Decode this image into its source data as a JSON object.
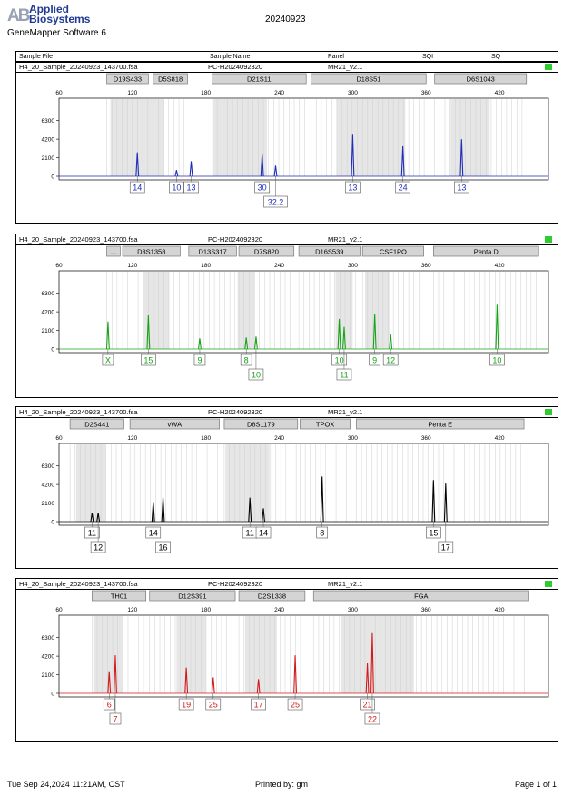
{
  "header": {
    "logo_mark": "AB",
    "logo_line1": "Applied",
    "logo_line2": "Biosystems",
    "software": "GeneMapper Software 6",
    "date": "20240923"
  },
  "columns": [
    "Sample File",
    "Sample Name",
    "Panel",
    "SQI",
    "SQ"
  ],
  "sample": {
    "file": "H4_20_Sample_20240923_143700.fsa",
    "name": "PC-H2024092320",
    "panel": "MR21_v2.1"
  },
  "footer": {
    "left": "Tue Sep 24,2024 11:21AM, CST",
    "center": "Printed by: gm",
    "right": "Page 1 of 1"
  },
  "chart_data": [
    {
      "type": "line",
      "dye": "blue",
      "color": "#1f2db8",
      "xlim": [
        60,
        460
      ],
      "ylim": [
        0,
        7600
      ],
      "x_ticks": [
        60,
        120,
        180,
        240,
        300,
        360,
        420
      ],
      "y_ticks": [
        0,
        2100,
        4200,
        6300
      ],
      "markers": [
        {
          "name": "D19S433",
          "start": 99,
          "end": 133
        },
        {
          "name": "D5S818",
          "start": 137,
          "end": 165
        },
        {
          "name": "D21S11",
          "start": 185,
          "end": 262
        },
        {
          "name": "D18S51",
          "start": 266,
          "end": 360
        },
        {
          "name": "D6S1043",
          "start": 367,
          "end": 442
        }
      ],
      "bins": [
        [
          102,
          146
        ],
        [
          186,
          230
        ],
        [
          287,
          343
        ],
        [
          380,
          412
        ]
      ],
      "peaks": [
        {
          "x": 124,
          "y": 2700
        },
        {
          "x": 156,
          "y": 700
        },
        {
          "x": 168,
          "y": 1700
        },
        {
          "x": 226,
          "y": 2500
        },
        {
          "x": 237,
          "y": 1200
        },
        {
          "x": 300,
          "y": 4700
        },
        {
          "x": 341,
          "y": 3400
        },
        {
          "x": 389,
          "y": 4200
        }
      ],
      "alleles": [
        {
          "x": 124,
          "label": "14",
          "row": 1
        },
        {
          "x": 156,
          "label": "10",
          "row": 1
        },
        {
          "x": 168,
          "label": "13",
          "row": 1
        },
        {
          "x": 226,
          "label": "30",
          "row": 1
        },
        {
          "x": 237,
          "label": "32.2",
          "row": 2
        },
        {
          "x": 300,
          "label": "13",
          "row": 1
        },
        {
          "x": 341,
          "label": "24",
          "row": 1
        },
        {
          "x": 389,
          "label": "13",
          "row": 1
        }
      ]
    },
    {
      "type": "line",
      "dye": "green",
      "color": "#17a317",
      "xlim": [
        60,
        460
      ],
      "ylim": [
        0,
        7600
      ],
      "x_ticks": [
        60,
        120,
        180,
        240,
        300,
        360,
        420
      ],
      "y_ticks": [
        0,
        2100,
        4200,
        6300
      ],
      "markers": [
        {
          "name": "...",
          "start": 99,
          "end": 110
        },
        {
          "name": "D3S1358",
          "start": 112,
          "end": 159
        },
        {
          "name": "D13S317",
          "start": 166,
          "end": 205
        },
        {
          "name": "D7S820",
          "start": 207,
          "end": 252
        },
        {
          "name": "D16S539",
          "start": 256,
          "end": 306
        },
        {
          "name": "CSF1PO",
          "start": 308,
          "end": 358
        },
        {
          "name": "Penta D",
          "start": 366,
          "end": 452
        }
      ],
      "bins": [
        [
          129,
          150
        ],
        [
          206,
          220
        ],
        [
          286,
          300
        ],
        [
          310,
          330
        ]
      ],
      "peaks": [
        {
          "x": 100,
          "y": 3100
        },
        {
          "x": 133,
          "y": 3800
        },
        {
          "x": 175,
          "y": 1200
        },
        {
          "x": 213,
          "y": 1300
        },
        {
          "x": 221,
          "y": 1400
        },
        {
          "x": 289,
          "y": 3400
        },
        {
          "x": 293,
          "y": 2500
        },
        {
          "x": 318,
          "y": 4000
        },
        {
          "x": 331,
          "y": 1700
        },
        {
          "x": 418,
          "y": 5000
        }
      ],
      "alleles": [
        {
          "x": 100,
          "label": "X",
          "row": 1
        },
        {
          "x": 133,
          "label": "15",
          "row": 1
        },
        {
          "x": 175,
          "label": "9",
          "row": 1
        },
        {
          "x": 213,
          "label": "8",
          "row": 1
        },
        {
          "x": 221,
          "label": "10",
          "row": 2
        },
        {
          "x": 289,
          "label": "10",
          "row": 1
        },
        {
          "x": 293,
          "label": "11",
          "row": 2
        },
        {
          "x": 318,
          "label": "9",
          "row": 1
        },
        {
          "x": 331,
          "label": "12",
          "row": 1
        },
        {
          "x": 418,
          "label": "10",
          "row": 1
        }
      ]
    },
    {
      "type": "line",
      "dye": "black",
      "color": "#000000",
      "xlim": [
        60,
        460
      ],
      "ylim": [
        0,
        7600
      ],
      "x_ticks": [
        60,
        120,
        180,
        240,
        300,
        360,
        420
      ],
      "y_ticks": [
        0,
        2100,
        4200,
        6300
      ],
      "markers": [
        {
          "name": "D2S441",
          "start": 69,
          "end": 113
        },
        {
          "name": "vWA",
          "start": 118,
          "end": 191
        },
        {
          "name": "D8S1179",
          "start": 195,
          "end": 255
        },
        {
          "name": "TPOX",
          "start": 257,
          "end": 298
        },
        {
          "name": "Penta E",
          "start": 303,
          "end": 440
        }
      ],
      "bins": [
        [
          74,
          98
        ],
        [
          196,
          232
        ]
      ],
      "peaks": [
        {
          "x": 87,
          "y": 1000
        },
        {
          "x": 92,
          "y": 1000
        },
        {
          "x": 137,
          "y": 2200
        },
        {
          "x": 145,
          "y": 2700
        },
        {
          "x": 216,
          "y": 2700
        },
        {
          "x": 227,
          "y": 1500
        },
        {
          "x": 275,
          "y": 5100
        },
        {
          "x": 366,
          "y": 4700
        },
        {
          "x": 376,
          "y": 4300
        }
      ],
      "alleles": [
        {
          "x": 87,
          "label": "11",
          "row": 1
        },
        {
          "x": 92,
          "label": "12",
          "row": 2
        },
        {
          "x": 137,
          "label": "14",
          "row": 1
        },
        {
          "x": 145,
          "label": "16",
          "row": 2
        },
        {
          "x": 216,
          "label": "11",
          "row": 1
        },
        {
          "x": 227,
          "label": "14",
          "row": 1
        },
        {
          "x": 275,
          "label": "8",
          "row": 1
        },
        {
          "x": 366,
          "label": "15",
          "row": 1
        },
        {
          "x": 376,
          "label": "17",
          "row": 2
        }
      ]
    },
    {
      "type": "line",
      "dye": "red",
      "color": "#d21a1a",
      "xlim": [
        60,
        460
      ],
      "ylim": [
        0,
        7600
      ],
      "x_ticks": [
        60,
        120,
        180,
        240,
        300,
        360,
        420
      ],
      "y_ticks": [
        0,
        2100,
        4200,
        6300
      ],
      "markers": [
        {
          "name": "TH01",
          "start": 87,
          "end": 131
        },
        {
          "name": "D12S391",
          "start": 134,
          "end": 204
        },
        {
          "name": "D2S1338",
          "start": 207,
          "end": 261
        },
        {
          "name": "FGA",
          "start": 268,
          "end": 444
        }
      ],
      "bins": [
        [
          88,
          112
        ],
        [
          156,
          180
        ],
        [
          212,
          238
        ],
        [
          290,
          350
        ]
      ],
      "peaks": [
        {
          "x": 101,
          "y": 2500
        },
        {
          "x": 106,
          "y": 4300
        },
        {
          "x": 164,
          "y": 2900
        },
        {
          "x": 186,
          "y": 1800
        },
        {
          "x": 223,
          "y": 1600
        },
        {
          "x": 253,
          "y": 4300
        },
        {
          "x": 312,
          "y": 3400
        },
        {
          "x": 316,
          "y": 6900
        }
      ],
      "alleles": [
        {
          "x": 101,
          "label": "6",
          "row": 1
        },
        {
          "x": 106,
          "label": "7",
          "row": 2
        },
        {
          "x": 164,
          "label": "19",
          "row": 1
        },
        {
          "x": 186,
          "label": "25",
          "row": 1
        },
        {
          "x": 223,
          "label": "17",
          "row": 1
        },
        {
          "x": 253,
          "label": "25",
          "row": 1
        },
        {
          "x": 312,
          "label": "21",
          "row": 1
        },
        {
          "x": 316,
          "label": "22",
          "row": 2
        }
      ]
    }
  ]
}
